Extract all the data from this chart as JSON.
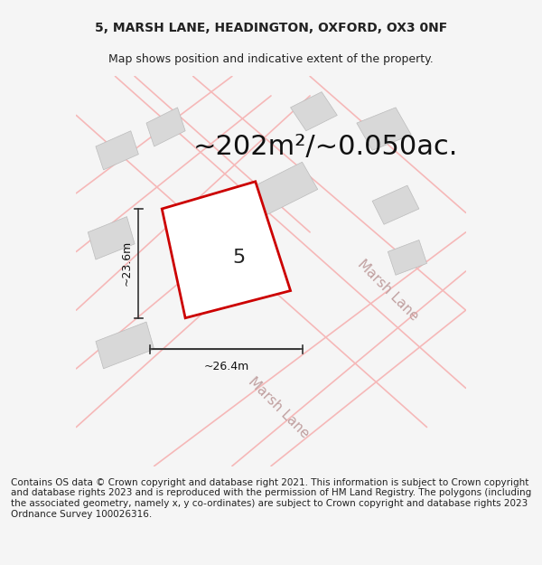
{
  "title_line1": "5, MARSH LANE, HEADINGTON, OXFORD, OX3 0NF",
  "title_line2": "Map shows position and indicative extent of the property.",
  "area_text": "~202m²/~0.050ac.",
  "label_width": "~26.4m",
  "label_height": "~23.6m",
  "plot_number": "5",
  "footer_text": "Contains OS data © Crown copyright and database right 2021. This information is subject to Crown copyright and database rights 2023 and is reproduced with the permission of HM Land Registry. The polygons (including the associated geometry, namely x, y co-ordinates) are subject to Crown copyright and database rights 2023 Ordnance Survey 100026316.",
  "bg_color": "#f5f5f5",
  "map_bg": "#ffffff",
  "road_color": "#f5b8b8",
  "building_color": "#d8d8d8",
  "plot_edge_color": "#cc0000",
  "plot_fill_color": "#ffffff",
  "road_label_color": "#c0a0a0",
  "dim_line_color": "#333333",
  "title_fontsize": 10,
  "subtitle_fontsize": 9,
  "area_fontsize": 22,
  "plot_label_fontsize": 16,
  "road_label_fontsize": 11,
  "footer_fontsize": 7.5
}
